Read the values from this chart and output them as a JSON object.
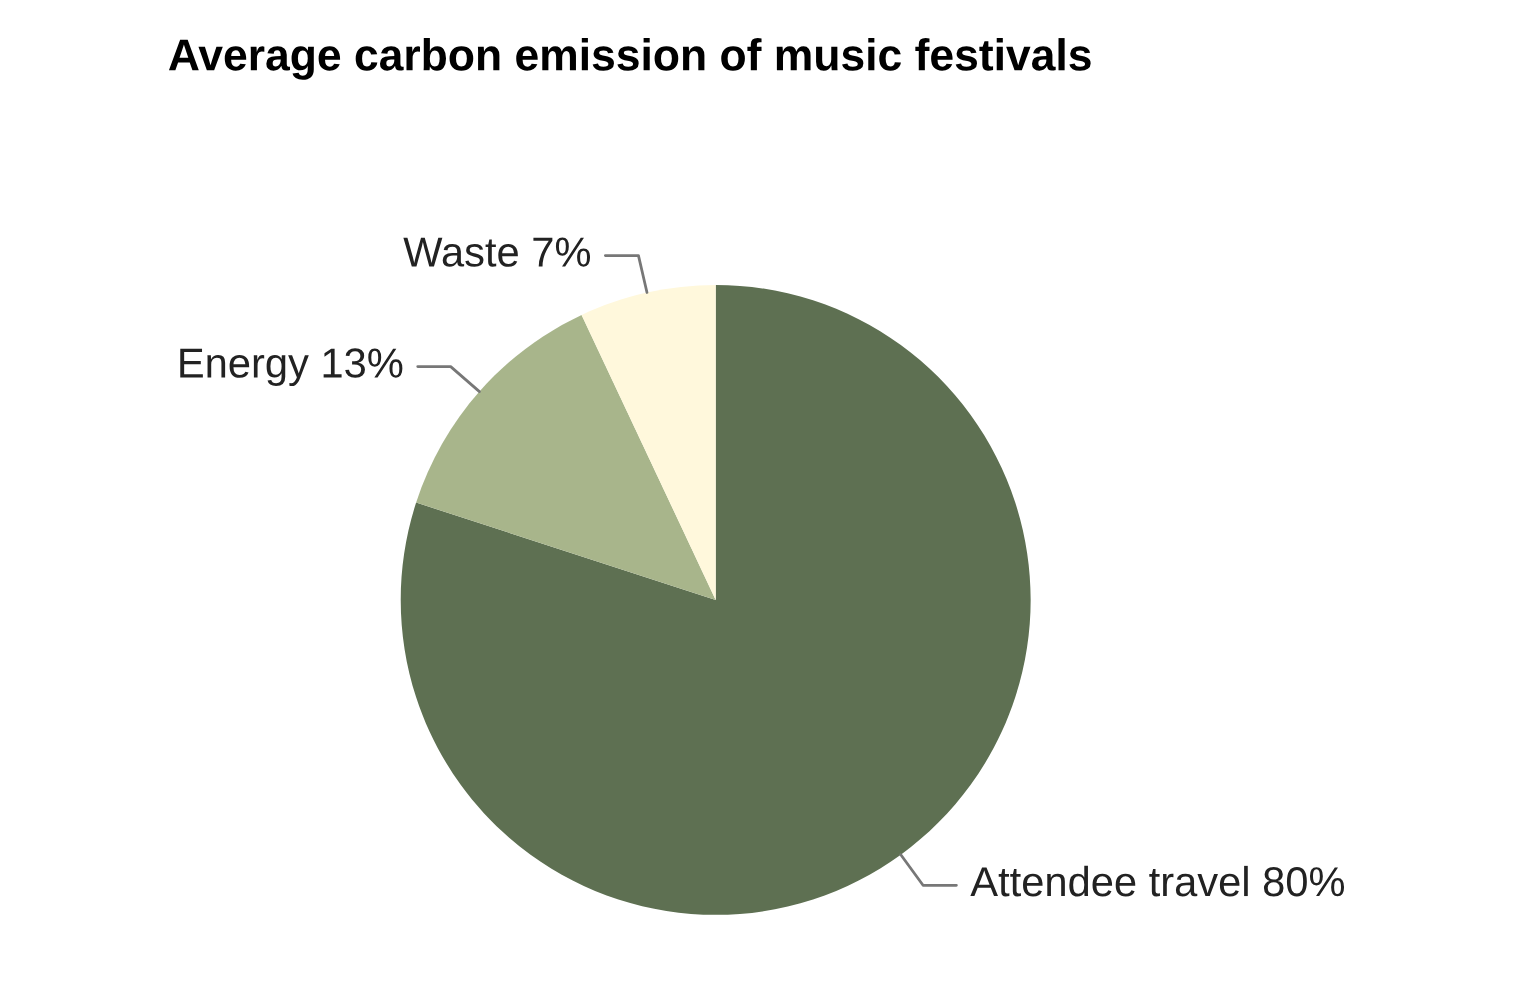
{
  "chart_data": {
    "type": "pie",
    "title": "Average carbon emission of music festivals",
    "categories": [
      "Attendee travel",
      "Energy",
      "Waste"
    ],
    "values": [
      80,
      13,
      7
    ],
    "value_labels": [
      "80%",
      "13%",
      "7%"
    ],
    "colors": [
      "#5e7052",
      "#a8b58b",
      "#fff8dc"
    ]
  }
}
